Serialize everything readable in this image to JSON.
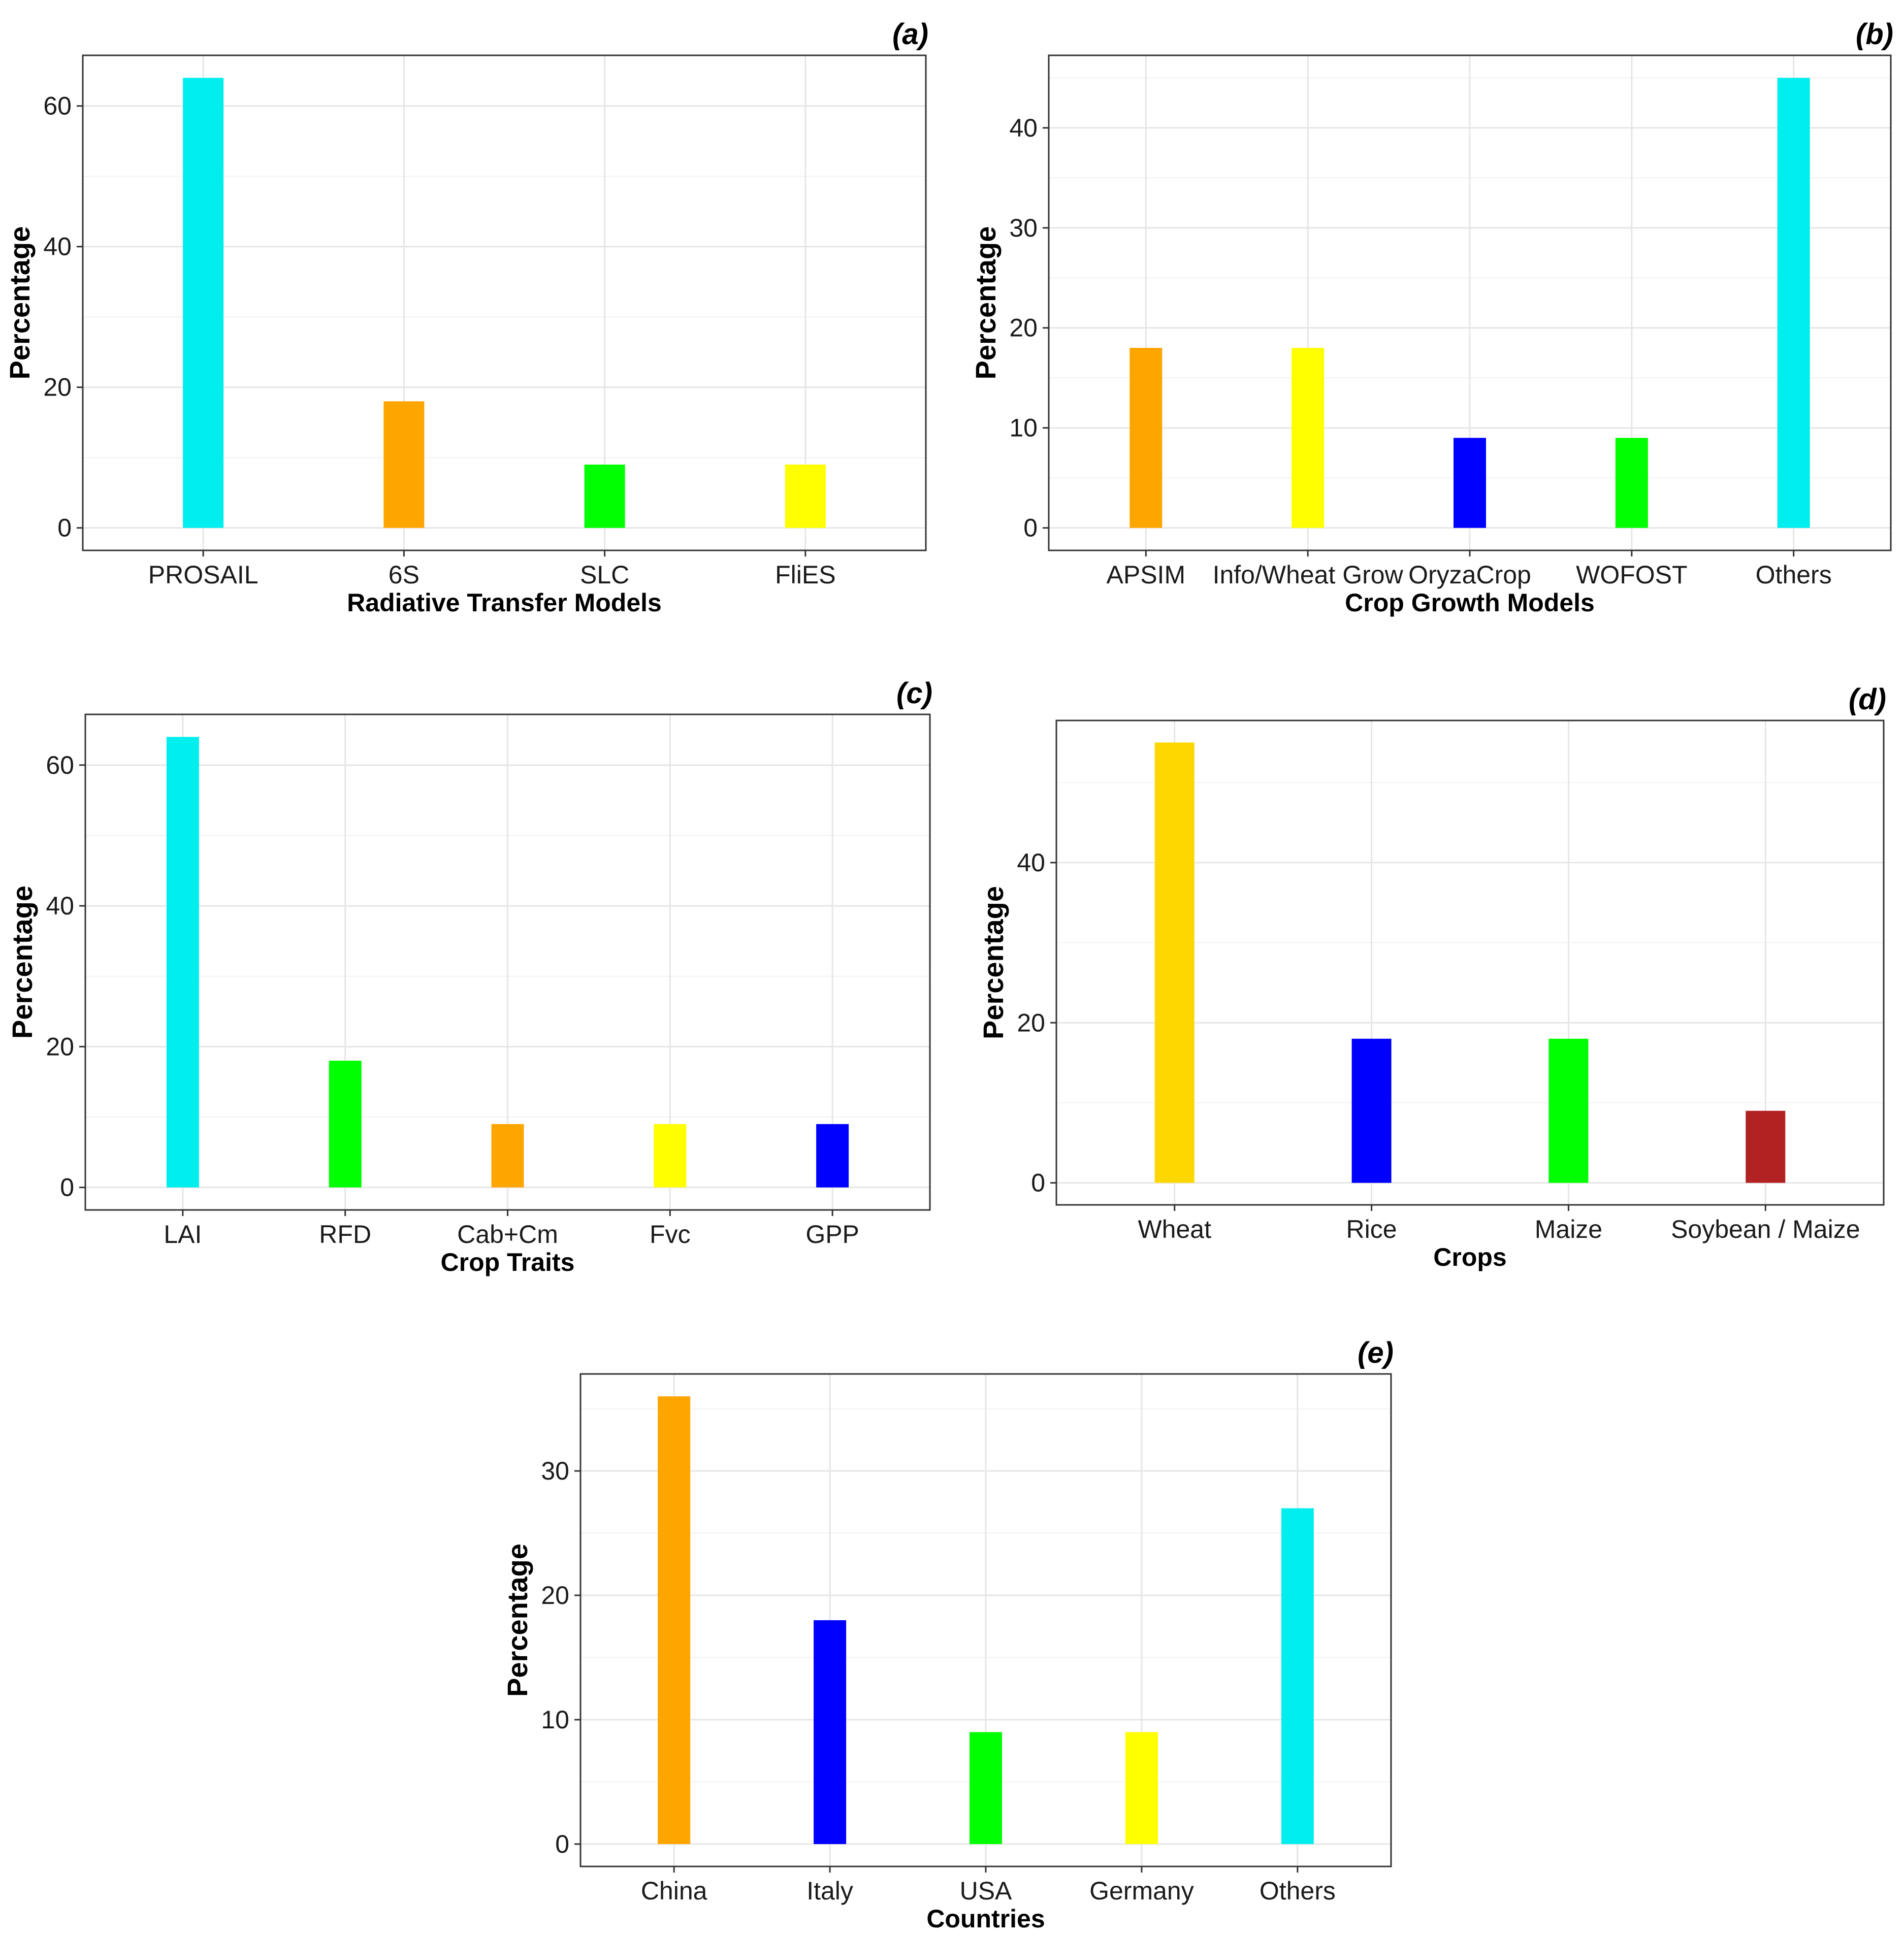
{
  "chart_data": [
    {
      "panel_label": "(a)",
      "type": "bar",
      "categories": [
        "PROSAIL",
        "6S",
        "SLC",
        "FliES"
      ],
      "values": [
        64,
        18,
        9,
        9
      ],
      "colors": [
        "#00EEEE",
        "#FFA500",
        "#00FF00",
        "#FFFF00"
      ],
      "xlabel": "Radiative Transfer Models",
      "ylabel": "Percentage",
      "ylim": [
        -3.2,
        67.2
      ],
      "yticks": [
        0,
        20,
        40,
        60
      ],
      "grid": true
    },
    {
      "panel_label": "(b)",
      "type": "bar",
      "categories": [
        "APSIM",
        "Info/Wheat Grow",
        "OryzaCrop",
        "WOFOST",
        "Others"
      ],
      "values": [
        18,
        18,
        9,
        9,
        45
      ],
      "colors": [
        "#FFA500",
        "#FFFF00",
        "#0000FF",
        "#00FF00",
        "#00EEEE"
      ],
      "xlabel": "Crop Growth Models",
      "ylabel": "Percentage",
      "ylim": [
        -2.25,
        47.25
      ],
      "yticks": [
        0,
        10,
        20,
        30,
        40
      ],
      "grid": true
    },
    {
      "panel_label": "(c)",
      "type": "bar",
      "categories": [
        "LAI",
        "RFD",
        "Cab+Cm",
        "Fvc",
        "GPP"
      ],
      "values": [
        64,
        18,
        9,
        9,
        9
      ],
      "colors": [
        "#00EEEE",
        "#00FF00",
        "#FFA500",
        "#FFFF00",
        "#0000FF"
      ],
      "xlabel": "Crop Traits",
      "ylabel": "Percentage",
      "ylim": [
        -3.2,
        67.2
      ],
      "yticks": [
        0,
        20,
        40,
        60
      ],
      "grid": true
    },
    {
      "panel_label": "(d)",
      "type": "bar",
      "categories": [
        "Wheat",
        "Rice",
        "Maize",
        "Soybean / Maize"
      ],
      "values": [
        55,
        18,
        18,
        9
      ],
      "colors": [
        "#FFD700",
        "#0000FF",
        "#00FF00",
        "#B22222"
      ],
      "xlabel": "Crops",
      "ylabel": "Percentage",
      "ylim": [
        -2.75,
        57.75
      ],
      "yticks": [
        0,
        20,
        40
      ],
      "grid": true
    },
    {
      "panel_label": "(e)",
      "type": "bar",
      "categories": [
        "China",
        "Italy",
        "USA",
        "Germany",
        "Others"
      ],
      "values": [
        36,
        18,
        9,
        9,
        27
      ],
      "colors": [
        "#FFA500",
        "#0000FF",
        "#00FF00",
        "#FFFF00",
        "#00EEEE"
      ],
      "xlabel": "Countries",
      "ylabel": "Percentage",
      "ylim": [
        -1.8,
        37.8
      ],
      "yticks": [
        0,
        10,
        20,
        30
      ],
      "grid": true
    }
  ]
}
